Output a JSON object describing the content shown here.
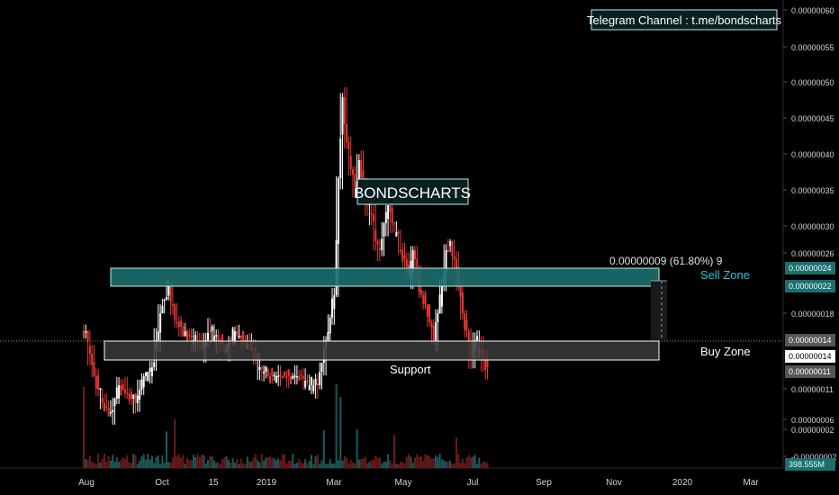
{
  "telegram_label": "Telegram Channel : t.me/bondscharts",
  "brand_label": "BONDSCHARTS",
  "fib_label": "0.00000009 (61.80%) 9",
  "sell_zone_label": "Sell Zone",
  "buy_zone_label": "Buy Zone",
  "support_label": "Support",
  "colors": {
    "background": "#000000",
    "zone_teal": "#1e6e6e",
    "zone_outline": "#b2f0f0",
    "sell_text": "#26c6da",
    "candle_up": "#ffffff",
    "candle_down": "#e53935",
    "volume_up": "#1e5a5a",
    "volume_down": "#6b1a1a"
  },
  "chart_data": {
    "type": "candlestick",
    "y_axis": {
      "scale": "linear",
      "ticks": [
        "0.00000060",
        "0.00000055",
        "0.00000050",
        "0.00000045",
        "0.00000040",
        "0.00000035",
        "0.00000030",
        "0.00000026",
        "0.00000018",
        "0.00000014",
        "0.00000011",
        "0.00000006",
        "0.00000002",
        "-0.00000002"
      ],
      "highlighted_labels": [
        {
          "text": "0.00000024",
          "style": "teal"
        },
        {
          "text": "0.00000022",
          "style": "teal"
        },
        {
          "text": "0.00000014",
          "style": "grey"
        },
        {
          "text": "0.00000014",
          "style": "white"
        },
        {
          "text": "0.00000011",
          "style": "grey"
        },
        {
          "text": "398.555M",
          "style": "teal"
        }
      ]
    },
    "x_axis": {
      "ticks": [
        "Aug",
        "Oct",
        "15",
        "2019",
        "Mar",
        "May",
        "Jul",
        "Sep",
        "Nov",
        "2020",
        "Mar"
      ]
    },
    "zones": [
      {
        "name": "Sell Zone",
        "low": 2.1e-07,
        "high": 2.4e-07
      },
      {
        "name": "Buy Zone",
        "low": 1.1e-07,
        "high": 1.4e-07
      }
    ],
    "price_path": [
      [
        0,
        1.7e-07
      ],
      [
        2,
        1.2e-07
      ],
      [
        4,
        9e-08
      ],
      [
        6,
        8e-08
      ],
      [
        8,
        1.1e-07
      ],
      [
        10,
        1e-07
      ],
      [
        12,
        9e-08
      ],
      [
        14,
        1.2e-07
      ],
      [
        16,
        1.3e-07
      ],
      [
        18,
        1.9e-07
      ],
      [
        20,
        2.2e-07
      ],
      [
        22,
        1.8e-07
      ],
      [
        24,
        1.7e-07
      ],
      [
        26,
        1.6e-07
      ],
      [
        28,
        1.5e-07
      ],
      [
        30,
        1.7e-07
      ],
      [
        32,
        1.6e-07
      ],
      [
        34,
        1.5e-07
      ],
      [
        36,
        1.7e-07
      ],
      [
        38,
        1.6e-07
      ],
      [
        40,
        1.5e-07
      ],
      [
        42,
        1.3e-07
      ],
      [
        44,
        1.2e-07
      ],
      [
        46,
        1.2e-07
      ],
      [
        48,
        1.2e-07
      ],
      [
        50,
        1.2e-07
      ],
      [
        52,
        1.2e-07
      ],
      [
        54,
        1.1e-07
      ],
      [
        56,
        1.1e-07
      ],
      [
        58,
        1.6e-07
      ],
      [
        60,
        2.1e-07
      ],
      [
        61,
        3.4e-07
      ],
      [
        62,
        4.3e-07
      ],
      [
        63,
        3.8e-07
      ],
      [
        64,
        3.5e-07
      ],
      [
        65,
        3.3e-07
      ],
      [
        66,
        3.6e-07
      ],
      [
        67,
        3.4e-07
      ],
      [
        68,
        3.1e-07
      ],
      [
        69,
        3e-07
      ],
      [
        70,
        2.7e-07
      ],
      [
        71,
        2.6e-07
      ],
      [
        72,
        2.9e-07
      ],
      [
        73,
        3.1e-07
      ],
      [
        74,
        2.9e-07
      ],
      [
        75,
        2.8e-07
      ],
      [
        76,
        2.6e-07
      ],
      [
        77,
        2.5e-07
      ],
      [
        78,
        2.3e-07
      ],
      [
        79,
        2.6e-07
      ],
      [
        80,
        2.3e-07
      ],
      [
        81,
        2.1e-07
      ],
      [
        82,
        2e-07
      ],
      [
        83,
        1.8e-07
      ],
      [
        84,
        1.6e-07
      ],
      [
        86,
        2.2e-07
      ],
      [
        87,
        2.6e-07
      ],
      [
        88,
        2.7e-07
      ],
      [
        89,
        2.5e-07
      ],
      [
        90,
        2.2e-07
      ],
      [
        91,
        1.9e-07
      ],
      [
        92,
        1.7e-07
      ],
      [
        93,
        1.4e-07
      ],
      [
        94,
        1.6e-07
      ],
      [
        95,
        1.5e-07
      ],
      [
        96,
        1.4e-07
      ],
      [
        97,
        1.3e-07
      ]
    ],
    "volume_profile": [
      [
        0,
        "low"
      ],
      [
        10,
        "low"
      ],
      [
        20,
        "mid"
      ],
      [
        22,
        "high"
      ],
      [
        30,
        "low"
      ],
      [
        42,
        "low"
      ],
      [
        58,
        "mid"
      ],
      [
        61,
        "high"
      ],
      [
        62,
        "high"
      ],
      [
        66,
        "mid"
      ],
      [
        75,
        "mid"
      ],
      [
        85,
        "low"
      ],
      [
        90,
        "mid"
      ],
      [
        97,
        "low"
      ]
    ]
  }
}
